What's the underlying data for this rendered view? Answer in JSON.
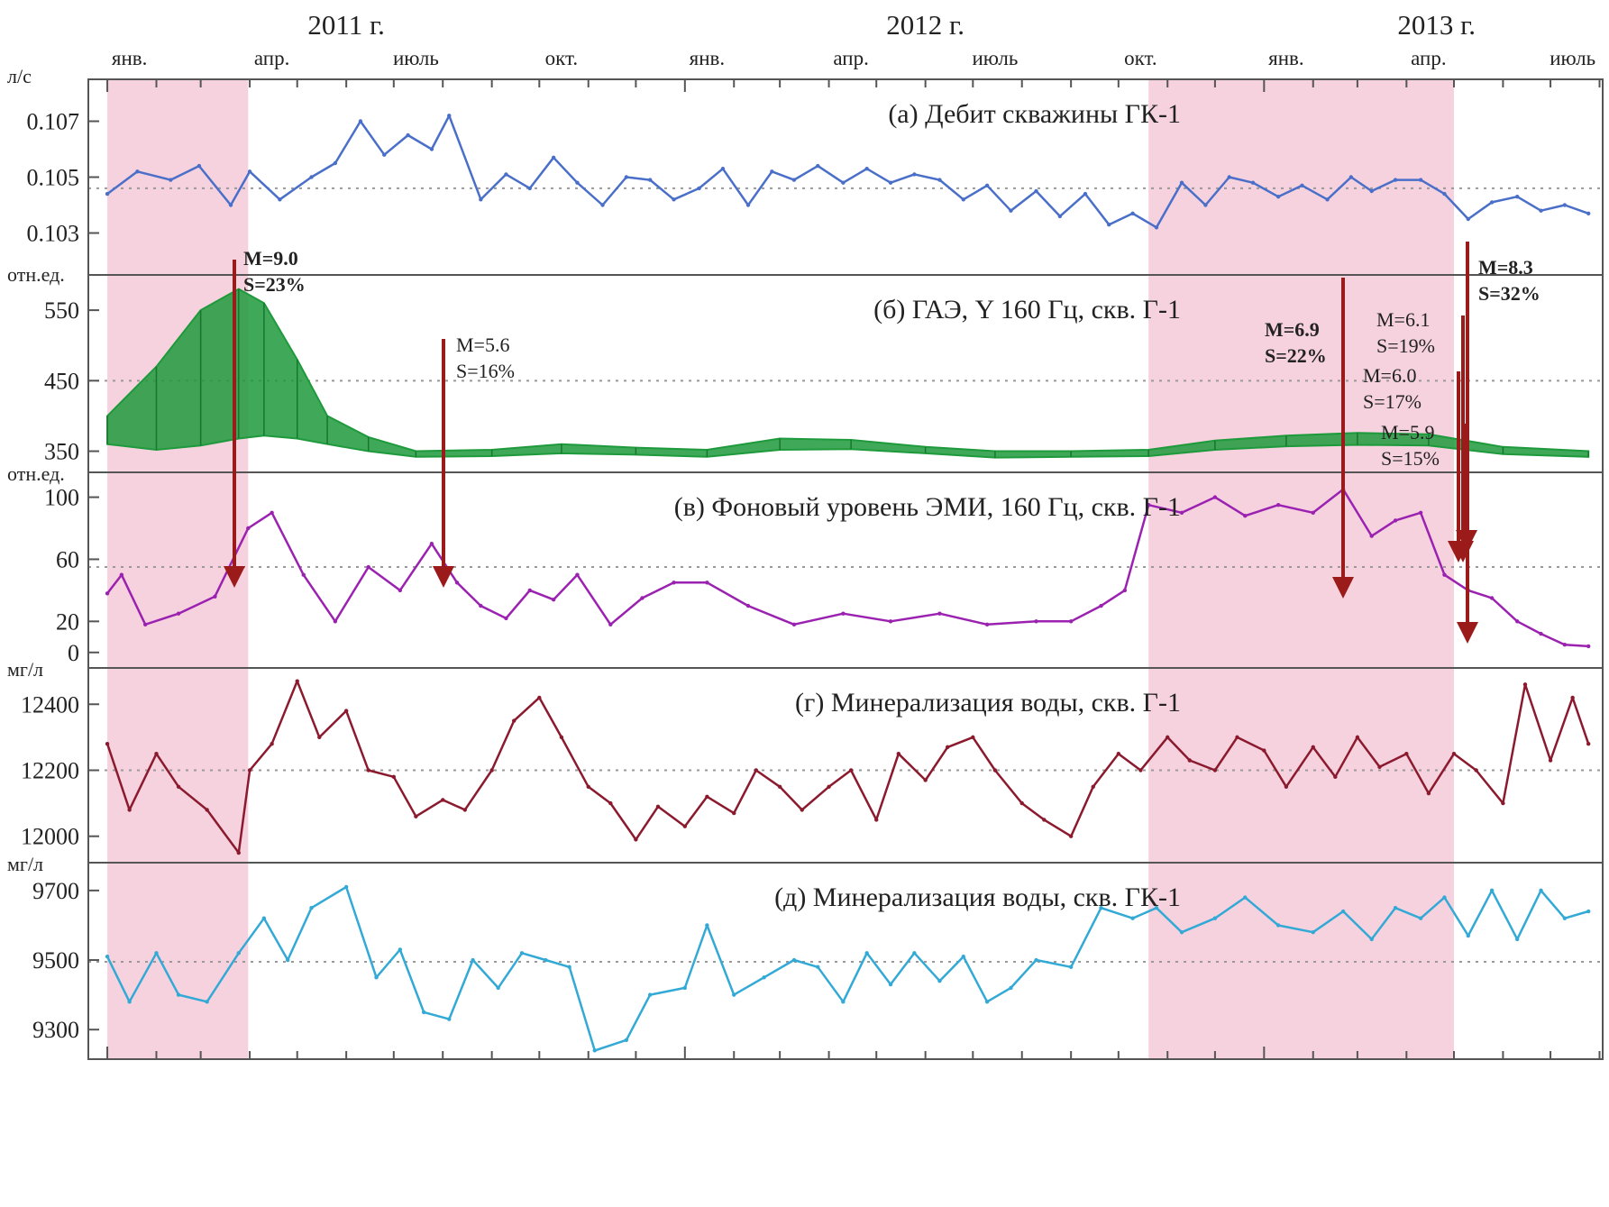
{
  "years": [
    {
      "label": "2011 г.",
      "date": "2011-06-01"
    },
    {
      "label": "2012 г.",
      "date": "2012-06-01"
    },
    {
      "label": "2013 г.",
      "date": "2013-04-20"
    }
  ],
  "months": [
    {
      "label": "янв.",
      "date": "2011-01-15"
    },
    {
      "label": "апр.",
      "date": "2011-04-15"
    },
    {
      "label": "июль",
      "date": "2011-07-15"
    },
    {
      "label": "окт.",
      "date": "2011-10-15"
    },
    {
      "label": "янв.",
      "date": "2012-01-15"
    },
    {
      "label": "апр.",
      "date": "2012-04-15"
    },
    {
      "label": "июль",
      "date": "2012-07-15"
    },
    {
      "label": "окт.",
      "date": "2012-10-15"
    },
    {
      "label": "янв.",
      "date": "2013-01-15"
    },
    {
      "label": "апр.",
      "date": "2013-04-15"
    },
    {
      "label": "июль",
      "date": "2013-07-15"
    }
  ],
  "highlights": [
    {
      "start": "2011-01-01",
      "end": "2011-03-31",
      "color": "#f6d2df"
    },
    {
      "start": "2012-10-20",
      "end": "2013-05-01",
      "color": "#f6d2df"
    }
  ],
  "colors": {
    "frame": "#555555",
    "arrow": "#9b1b1b",
    "dotted": "#999999"
  },
  "chart_data": [
    {
      "id": "a",
      "type": "line",
      "title": "(а) Дебит скважины ГК-1",
      "unit": "л/с",
      "ylim": [
        0.1015,
        0.1085
      ],
      "yticks": [
        {
          "v": 0.107,
          "label": "0.107"
        },
        {
          "v": 0.105,
          "label": "0.105"
        },
        {
          "v": 0.103,
          "label": "0.103"
        }
      ],
      "ref": 0.1046,
      "color": "#4a6fc9",
      "x": [
        "2011-01-01",
        "2011-01-20",
        "2011-02-10",
        "2011-02-28",
        "2011-03-20",
        "2011-04-01",
        "2011-04-20",
        "2011-05-10",
        "2011-05-25",
        "2011-06-10",
        "2011-06-25",
        "2011-07-10",
        "2011-07-25",
        "2011-08-05",
        "2011-08-25",
        "2011-09-10",
        "2011-09-25",
        "2011-10-10",
        "2011-10-25",
        "2011-11-10",
        "2011-11-25",
        "2011-12-10",
        "2011-12-25",
        "2012-01-10",
        "2012-01-25",
        "2012-02-10",
        "2012-02-25",
        "2012-03-10",
        "2012-03-25",
        "2012-04-10",
        "2012-04-25",
        "2012-05-10",
        "2012-05-25",
        "2012-06-10",
        "2012-06-25",
        "2012-07-10",
        "2012-07-25",
        "2012-08-10",
        "2012-08-25",
        "2012-09-10",
        "2012-09-25",
        "2012-10-10",
        "2012-10-25",
        "2012-11-10",
        "2012-11-25",
        "2012-12-10",
        "2012-12-25",
        "2013-01-10",
        "2013-01-25",
        "2013-02-10",
        "2013-02-25",
        "2013-03-10",
        "2013-03-25",
        "2013-04-10",
        "2013-04-25",
        "2013-05-10",
        "2013-05-25",
        "2013-06-10",
        "2013-06-25",
        "2013-07-10",
        "2013-07-25"
      ],
      "values": [
        0.1044,
        0.1052,
        0.1049,
        0.1054,
        0.104,
        0.1052,
        0.1042,
        0.105,
        0.1055,
        0.107,
        0.1058,
        0.1065,
        0.106,
        0.1072,
        0.1042,
        0.1051,
        0.1046,
        0.1057,
        0.1048,
        0.104,
        0.105,
        0.1049,
        0.1042,
        0.1046,
        0.1053,
        0.104,
        0.1052,
        0.1049,
        0.1054,
        0.1048,
        0.1053,
        0.1048,
        0.1051,
        0.1049,
        0.1042,
        0.1047,
        0.1038,
        0.1045,
        0.1036,
        0.1044,
        0.1033,
        0.1037,
        0.1032,
        0.1048,
        0.104,
        0.105,
        0.1048,
        0.1043,
        0.1047,
        0.1042,
        0.105,
        0.1045,
        0.1049,
        0.1049,
        0.1044,
        0.1035,
        0.1041,
        0.1043,
        0.1038,
        0.104,
        0.1037
      ]
    },
    {
      "id": "b",
      "type": "area",
      "title": "(б) ГАЭ, Y 160 Гц, скв. Г-1",
      "unit": "отн.ед.",
      "ylim": [
        320,
        600
      ],
      "yticks": [
        {
          "v": 550,
          "label": "550"
        },
        {
          "v": 450,
          "label": "450"
        },
        {
          "v": 350,
          "label": "350"
        }
      ],
      "ref": 450,
      "color": "#1e9a3c",
      "x": [
        "2011-01-01",
        "2011-02-01",
        "2011-03-01",
        "2011-03-25",
        "2011-04-10",
        "2011-05-01",
        "2011-05-20",
        "2011-06-15",
        "2011-07-15",
        "2011-09-01",
        "2011-10-15",
        "2011-12-01",
        "2012-01-15",
        "2012-03-01",
        "2012-04-15",
        "2012-06-01",
        "2012-07-15",
        "2012-09-01",
        "2012-10-20",
        "2012-12-01",
        "2013-01-15",
        "2013-03-01",
        "2013-04-15",
        "2013-06-01",
        "2013-07-25"
      ],
      "low": [
        360,
        352,
        358,
        368,
        372,
        368,
        360,
        350,
        342,
        343,
        347,
        345,
        342,
        352,
        353,
        347,
        341,
        342,
        343,
        352,
        357,
        359,
        358,
        346,
        342
      ],
      "high": [
        400,
        470,
        550,
        580,
        560,
        480,
        400,
        370,
        350,
        352,
        360,
        355,
        352,
        368,
        366,
        356,
        350,
        350,
        352,
        365,
        372,
        376,
        374,
        356,
        350
      ]
    },
    {
      "id": "v",
      "type": "line",
      "title": "(в) Фоновый уровень ЭМИ, 160 Гц, скв. Г-1",
      "unit": "отн.ед.",
      "ylim": [
        -10,
        116
      ],
      "yticks": [
        {
          "v": 100,
          "label": "100"
        },
        {
          "v": 60,
          "label": "60"
        },
        {
          "v": 20,
          "label": "20"
        },
        {
          "v": 0,
          "label": "0"
        }
      ],
      "ref": 55,
      "color": "#9b22b0",
      "x": [
        "2011-01-01",
        "2011-01-10",
        "2011-01-25",
        "2011-02-15",
        "2011-03-10",
        "2011-03-31",
        "2011-04-15",
        "2011-05-05",
        "2011-05-25",
        "2011-06-15",
        "2011-07-05",
        "2011-07-25",
        "2011-08-10",
        "2011-08-25",
        "2011-09-10",
        "2011-09-25",
        "2011-10-10",
        "2011-10-25",
        "2011-11-15",
        "2011-12-05",
        "2011-12-25",
        "2012-01-15",
        "2012-02-10",
        "2012-03-10",
        "2012-04-10",
        "2012-05-10",
        "2012-06-10",
        "2012-07-10",
        "2012-08-10",
        "2012-09-01",
        "2012-09-20",
        "2012-10-05",
        "2012-10-20",
        "2012-11-10",
        "2012-12-01",
        "2012-12-20",
        "2013-01-10",
        "2013-02-01",
        "2013-02-20",
        "2013-03-10",
        "2013-03-25",
        "2013-04-10",
        "2013-04-25",
        "2013-05-10",
        "2013-05-25",
        "2013-06-10",
        "2013-06-25",
        "2013-07-10",
        "2013-07-25"
      ],
      "values": [
        38,
        50,
        18,
        25,
        36,
        80,
        90,
        50,
        20,
        55,
        40,
        70,
        45,
        30,
        22,
        40,
        34,
        50,
        18,
        35,
        45,
        45,
        30,
        18,
        25,
        20,
        25,
        18,
        20,
        20,
        30,
        40,
        95,
        90,
        100,
        88,
        95,
        90,
        105,
        75,
        85,
        90,
        50,
        40,
        35,
        20,
        12,
        5,
        4
      ]
    },
    {
      "id": "g",
      "type": "line",
      "title": "(г) Минерализация воды, скв. Г-1",
      "unit": "мг/л",
      "ylim": [
        11920,
        12510
      ],
      "yticks": [
        {
          "v": 12400,
          "label": "12400"
        },
        {
          "v": 12200,
          "label": "12200"
        },
        {
          "v": 12000,
          "label": "12000"
        }
      ],
      "ref": 12200,
      "color": "#8b1a2e",
      "x": [
        "2011-01-01",
        "2011-01-15",
        "2011-02-01",
        "2011-02-15",
        "2011-03-05",
        "2011-03-25",
        "2011-04-01",
        "2011-04-15",
        "2011-05-01",
        "2011-05-15",
        "2011-06-01",
        "2011-06-15",
        "2011-07-01",
        "2011-07-15",
        "2011-08-01",
        "2011-08-15",
        "2011-09-01",
        "2011-09-15",
        "2011-10-01",
        "2011-10-15",
        "2011-11-01",
        "2011-11-15",
        "2011-12-01",
        "2011-12-15",
        "2012-01-01",
        "2012-01-15",
        "2012-02-01",
        "2012-02-15",
        "2012-03-01",
        "2012-03-15",
        "2012-04-01",
        "2012-04-15",
        "2012-05-01",
        "2012-05-15",
        "2012-06-01",
        "2012-06-15",
        "2012-07-01",
        "2012-07-15",
        "2012-08-01",
        "2012-08-15",
        "2012-09-01",
        "2012-09-15",
        "2012-10-01",
        "2012-10-15",
        "2012-11-01",
        "2012-11-15",
        "2012-12-01",
        "2012-12-15",
        "2013-01-01",
        "2013-01-15",
        "2013-02-01",
        "2013-02-15",
        "2013-03-01",
        "2013-03-15",
        "2013-04-01",
        "2013-04-15",
        "2013-05-01",
        "2013-05-15",
        "2013-06-01",
        "2013-06-15",
        "2013-07-01",
        "2013-07-15",
        "2013-07-25"
      ],
      "values": [
        12280,
        12080,
        12250,
        12150,
        12080,
        11950,
        12200,
        12280,
        12470,
        12300,
        12380,
        12200,
        12180,
        12060,
        12110,
        12080,
        12200,
        12350,
        12420,
        12300,
        12150,
        12100,
        11990,
        12090,
        12030,
        12120,
        12070,
        12200,
        12150,
        12080,
        12150,
        12200,
        12050,
        12250,
        12170,
        12270,
        12300,
        12200,
        12100,
        12050,
        12000,
        12150,
        12250,
        12200,
        12300,
        12230,
        12200,
        12300,
        12260,
        12150,
        12270,
        12180,
        12300,
        12210,
        12250,
        12130,
        12250,
        12200,
        12100,
        12460,
        12230,
        12420,
        12280
      ]
    },
    {
      "id": "d",
      "type": "line",
      "title": "(д) Минерализация воды, скв. ГК-1",
      "unit": "мг/л",
      "ylim": [
        9215,
        9780
      ],
      "yticks": [
        {
          "v": 9700,
          "label": "9700"
        },
        {
          "v": 9500,
          "label": "9500"
        },
        {
          "v": 9300,
          "label": "9300"
        }
      ],
      "ref": 9495,
      "color": "#33a9d6",
      "x": [
        "2011-01-01",
        "2011-01-15",
        "2011-02-01",
        "2011-02-15",
        "2011-03-05",
        "2011-03-25",
        "2011-04-10",
        "2011-04-25",
        "2011-05-10",
        "2011-06-01",
        "2011-06-20",
        "2011-07-05",
        "2011-07-20",
        "2011-08-05",
        "2011-08-20",
        "2011-09-05",
        "2011-09-20",
        "2011-10-05",
        "2011-10-20",
        "2011-11-05",
        "2011-11-25",
        "2011-12-10",
        "2012-01-01",
        "2012-01-15",
        "2012-02-01",
        "2012-02-20",
        "2012-03-10",
        "2012-03-25",
        "2012-04-10",
        "2012-04-25",
        "2012-05-10",
        "2012-05-25",
        "2012-06-10",
        "2012-06-25",
        "2012-07-10",
        "2012-07-25",
        "2012-08-10",
        "2012-09-01",
        "2012-09-20",
        "2012-10-10",
        "2012-10-25",
        "2012-11-10",
        "2012-12-01",
        "2012-12-20",
        "2013-01-10",
        "2013-02-01",
        "2013-02-20",
        "2013-03-10",
        "2013-03-25",
        "2013-04-10",
        "2013-04-25",
        "2013-05-10",
        "2013-05-25",
        "2013-06-10",
        "2013-06-25",
        "2013-07-10",
        "2013-07-25"
      ],
      "values": [
        9510,
        9380,
        9520,
        9400,
        9380,
        9520,
        9620,
        9500,
        9650,
        9710,
        9450,
        9530,
        9350,
        9330,
        9500,
        9420,
        9520,
        9500,
        9480,
        9240,
        9270,
        9400,
        9420,
        9600,
        9400,
        9450,
        9500,
        9480,
        9380,
        9520,
        9430,
        9520,
        9440,
        9510,
        9380,
        9420,
        9500,
        9480,
        9650,
        9620,
        9650,
        9580,
        9620,
        9680,
        9600,
        9580,
        9640,
        9560,
        9650,
        9620,
        9680,
        9570,
        9700,
        9560,
        9700,
        9620,
        9640
      ]
    }
  ],
  "annotations": [
    {
      "lines": [
        "M=9.0",
        "S=23%"
      ],
      "bold": true
    },
    {
      "lines": [
        "M=5.6",
        "S=16%"
      ],
      "bold": false
    },
    {
      "lines": [
        "M=6.9",
        "S=22%"
      ],
      "bold": true
    },
    {
      "lines": [
        "M=6.1",
        "S=19%"
      ],
      "bold": false
    },
    {
      "lines": [
        "M=6.0",
        "S=17%"
      ],
      "bold": false
    },
    {
      "lines": [
        "M=5.9",
        "S=15%"
      ],
      "bold": false
    },
    {
      "lines": [
        "M=8.3",
        "S=32%"
      ],
      "bold": true
    }
  ]
}
